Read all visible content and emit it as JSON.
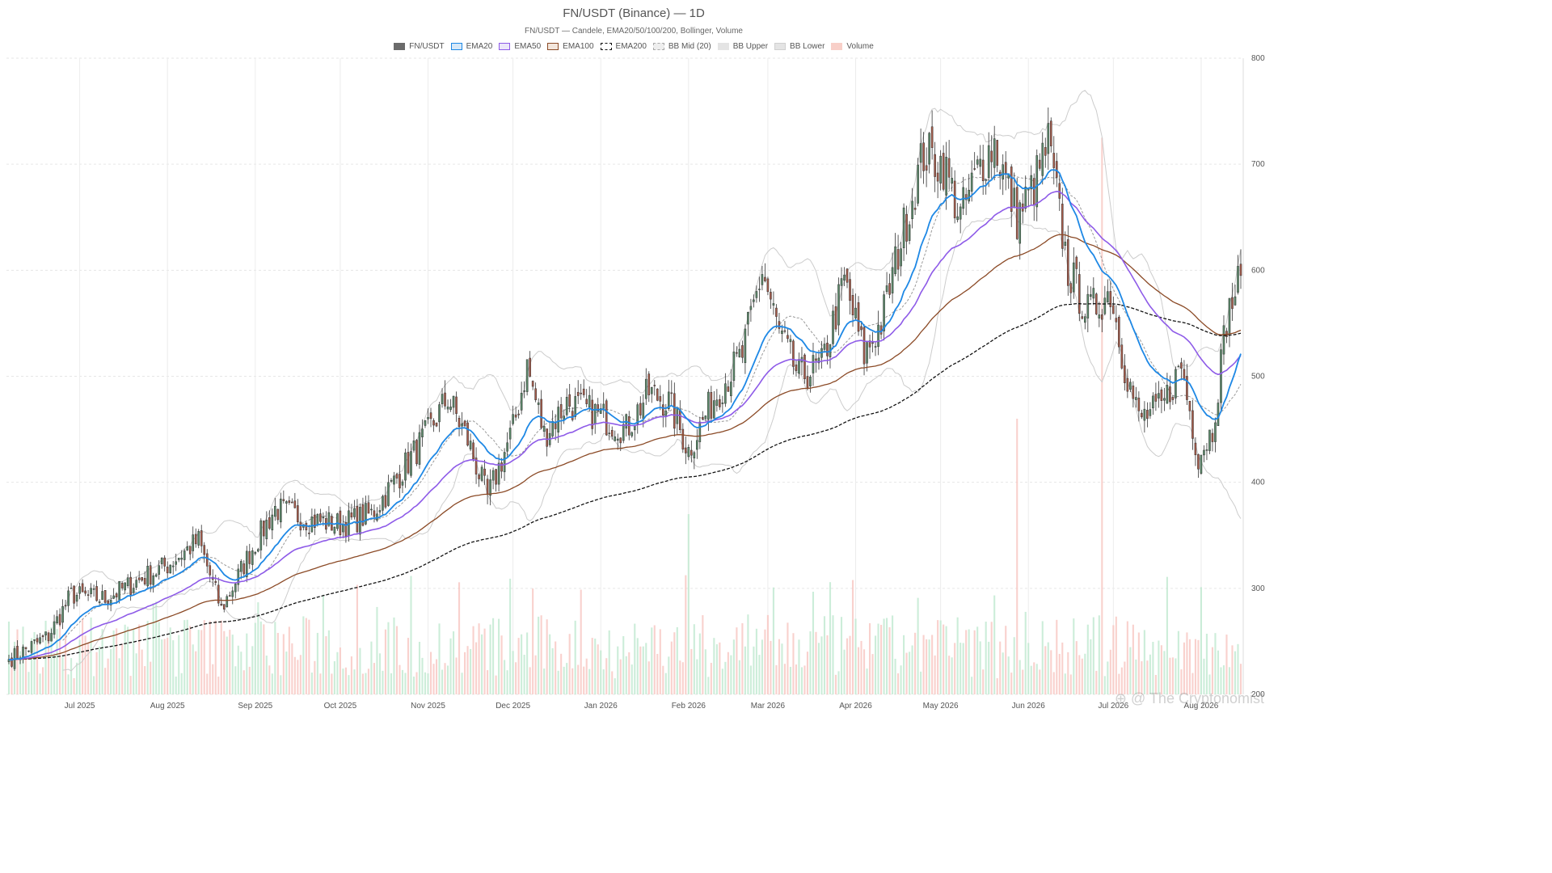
{
  "page": {
    "title": "FN/USDT (Binance) — 1D",
    "subtitle": "FN/USDT — Candele, EMA20/50/100/200, Bollinger, Volume",
    "watermark": "⊕ @ The Cryptonomist"
  },
  "legend": [
    {
      "label": "FN/USDT",
      "fill": "#6b6b6b",
      "border": "#6b6b6b",
      "style": "solid"
    },
    {
      "label": "EMA20",
      "fill": "#d6e8f8",
      "border": "#1e88e5",
      "style": "solid"
    },
    {
      "label": "EMA50",
      "fill": "#ece6fa",
      "border": "#8e5be8",
      "style": "solid"
    },
    {
      "label": "EMA100",
      "fill": "#f3e6dc",
      "border": "#8b4a26",
      "style": "solid"
    },
    {
      "label": "EMA200",
      "fill": "#ffffff",
      "border": "#111111",
      "style": "dashed"
    },
    {
      "label": "BB Mid (20)",
      "fill": "#eeeeee",
      "border": "#aaaaaa",
      "style": "dashed"
    },
    {
      "label": "BB Upper",
      "fill": "#e4e4e4",
      "border": "#e4e4e4",
      "style": "solid"
    },
    {
      "label": "BB Lower",
      "fill": "#e4e4e4",
      "border": "#d0d0d0",
      "style": "solid"
    },
    {
      "label": "Volume",
      "fill": "#f8cfc8",
      "border": "#f8cfc8",
      "style": "solid"
    }
  ],
  "chart_data": {
    "type": "candlestick",
    "title": "FN/USDT (Binance) — 1D",
    "subtitle": "FN/USDT — Candele, EMA20/50/100/200, Bollinger, Volume",
    "x_range": [
      "2025-06-06",
      "2026-08-15"
    ],
    "x_ticks": [
      "Jul 2025",
      "Aug 2025",
      "Sep 2025",
      "Oct 2025",
      "Nov 2025",
      "Dec 2025",
      "Jan 2026",
      "Feb 2026",
      "Mar 2026",
      "Apr 2026",
      "May 2026",
      "Jun 2026",
      "Jul 2026",
      "Aug 2026"
    ],
    "y_axis": {
      "position": "right",
      "ticks": [
        200,
        300,
        400,
        500,
        600,
        700,
        800
      ],
      "ylim": [
        200,
        800
      ]
    },
    "grid": true,
    "colors": {
      "up": "#5b8a6a",
      "down": "#a65b4a",
      "ema20": "#1e88e5",
      "ema50": "#8e5be8",
      "ema100": "#8b4a26",
      "ema200": "#111111",
      "bb_mid": "#999999",
      "bb_band": "#cccccc",
      "vol_up": "#bfe8cf",
      "vol_down": "#f8c6c0"
    },
    "close_anchors": [
      {
        "date": "2025-06-06",
        "value": 233
      },
      {
        "date": "2025-06-20",
        "value": 255
      },
      {
        "date": "2025-06-28",
        "value": 294
      },
      {
        "date": "2025-07-10",
        "value": 290
      },
      {
        "date": "2025-07-20",
        "value": 305
      },
      {
        "date": "2025-08-01",
        "value": 322
      },
      {
        "date": "2025-08-12",
        "value": 345
      },
      {
        "date": "2025-08-20",
        "value": 280
      },
      {
        "date": "2025-08-30",
        "value": 333
      },
      {
        "date": "2025-09-08",
        "value": 375
      },
      {
        "date": "2025-09-20",
        "value": 365
      },
      {
        "date": "2025-10-01",
        "value": 360
      },
      {
        "date": "2025-10-12",
        "value": 370
      },
      {
        "date": "2025-10-20",
        "value": 400
      },
      {
        "date": "2025-11-01",
        "value": 447
      },
      {
        "date": "2025-11-08",
        "value": 480
      },
      {
        "date": "2025-11-15",
        "value": 440
      },
      {
        "date": "2025-11-22",
        "value": 385
      },
      {
        "date": "2025-12-01",
        "value": 450
      },
      {
        "date": "2025-12-06",
        "value": 510
      },
      {
        "date": "2025-12-12",
        "value": 445
      },
      {
        "date": "2025-12-20",
        "value": 475
      },
      {
        "date": "2025-12-30",
        "value": 465
      },
      {
        "date": "2026-01-10",
        "value": 450
      },
      {
        "date": "2026-01-18",
        "value": 485
      },
      {
        "date": "2026-01-25",
        "value": 475
      },
      {
        "date": "2026-02-01",
        "value": 430
      },
      {
        "date": "2026-02-10",
        "value": 480
      },
      {
        "date": "2026-02-20",
        "value": 520
      },
      {
        "date": "2026-02-27",
        "value": 600
      },
      {
        "date": "2026-03-05",
        "value": 540
      },
      {
        "date": "2026-03-12",
        "value": 500
      },
      {
        "date": "2026-03-20",
        "value": 510
      },
      {
        "date": "2026-03-28",
        "value": 590
      },
      {
        "date": "2026-04-04",
        "value": 520
      },
      {
        "date": "2026-04-10",
        "value": 550
      },
      {
        "date": "2026-04-18",
        "value": 640
      },
      {
        "date": "2026-04-25",
        "value": 710
      },
      {
        "date": "2026-05-02",
        "value": 700
      },
      {
        "date": "2026-05-08",
        "value": 650
      },
      {
        "date": "2026-05-15",
        "value": 700
      },
      {
        "date": "2026-05-20",
        "value": 720
      },
      {
        "date": "2026-05-28",
        "value": 650
      },
      {
        "date": "2026-06-03",
        "value": 680
      },
      {
        "date": "2026-06-08",
        "value": 720
      },
      {
        "date": "2026-06-15",
        "value": 600
      },
      {
        "date": "2026-06-22",
        "value": 560
      },
      {
        "date": "2026-06-30",
        "value": 580
      },
      {
        "date": "2026-07-05",
        "value": 510
      },
      {
        "date": "2026-07-10",
        "value": 460
      },
      {
        "date": "2026-07-18",
        "value": 470
      },
      {
        "date": "2026-07-25",
        "value": 510
      },
      {
        "date": "2026-07-31",
        "value": 425
      },
      {
        "date": "2026-08-05",
        "value": 450
      },
      {
        "date": "2026-08-10",
        "value": 555
      },
      {
        "date": "2026-08-15",
        "value": 595
      }
    ],
    "volume_spikes": [
      {
        "date": "2026-02-01",
        "value": 370
      },
      {
        "date": "2026-05-28",
        "value": 460
      },
      {
        "date": "2026-06-27",
        "value": 725
      }
    ]
  }
}
